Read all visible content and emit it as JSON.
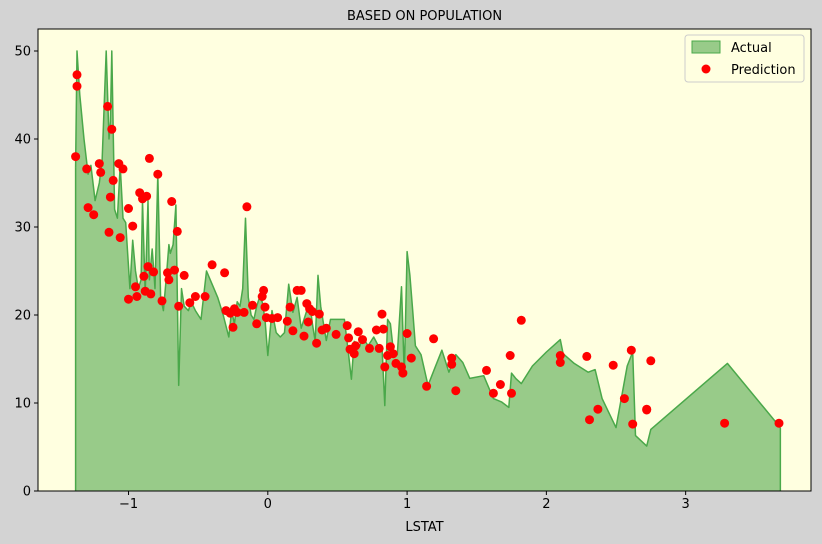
{
  "chart_data": {
    "type": "area",
    "title": "BASED ON POPULATION",
    "xlabel": "LSTAT",
    "ylabel": "",
    "xlim": [
      -1.65,
      3.9
    ],
    "ylim": [
      0,
      52.5
    ],
    "xticks": [
      -1,
      0,
      1,
      2,
      3
    ],
    "xtick_labels": [
      "−1",
      "0",
      "1",
      "2",
      "3"
    ],
    "yticks": [
      0,
      10,
      20,
      30,
      40,
      50
    ],
    "ytick_labels": [
      "0",
      "10",
      "20",
      "30",
      "40",
      "50"
    ],
    "grid": false,
    "legend_position": "top-right",
    "colors": {
      "figure_bg": "#d3d3d3",
      "axes_bg": "#ffffe0",
      "area_fill": "#98cb89",
      "area_line": "#4aa84a",
      "points": "#ff0000"
    },
    "series": [
      {
        "name": "Actual",
        "kind": "area",
        "x": [
          -1.38,
          -1.37,
          -1.35,
          -1.32,
          -1.29,
          -1.27,
          -1.24,
          -1.21,
          -1.19,
          -1.16,
          -1.14,
          -1.13,
          -1.12,
          -1.1,
          -1.08,
          -1.06,
          -1.04,
          -1.02,
          -0.99,
          -0.97,
          -0.95,
          -0.93,
          -0.91,
          -0.9,
          -0.88,
          -0.86,
          -0.85,
          -0.83,
          -0.81,
          -0.79,
          -0.77,
          -0.75,
          -0.73,
          -0.71,
          -0.7,
          -0.68,
          -0.66,
          -0.64,
          -0.62,
          -0.6,
          -0.57,
          -0.55,
          -0.52,
          -0.48,
          -0.44,
          -0.4,
          -0.36,
          -0.32,
          -0.28,
          -0.26,
          -0.24,
          -0.22,
          -0.2,
          -0.18,
          -0.16,
          -0.14,
          -0.12,
          -0.1,
          -0.08,
          -0.06,
          -0.04,
          -0.02,
          0,
          0.03,
          0.06,
          0.09,
          0.12,
          0.15,
          0.18,
          0.21,
          0.24,
          0.27,
          0.3,
          0.32,
          0.34,
          0.36,
          0.38,
          0.4,
          0.42,
          0.45,
          0.48,
          0.5,
          0.52,
          0.55,
          0.58,
          0.6,
          0.62,
          0.64,
          0.66,
          0.68,
          0.72,
          0.76,
          0.8,
          0.82,
          0.84,
          0.86,
          0.88,
          0.9,
          0.93,
          0.96,
          0.98,
          1.0,
          1.02,
          1.04,
          1.06,
          1.1,
          1.15,
          1.2,
          1.25,
          1.3,
          1.35,
          1.4,
          1.45,
          1.55,
          1.62,
          1.68,
          1.73,
          1.75,
          1.78,
          1.82,
          1.9,
          2.0,
          2.1,
          2.12,
          2.2,
          2.3,
          2.35,
          2.4,
          2.5,
          2.58,
          2.62,
          2.64,
          2.72,
          2.75,
          3.3,
          3.68
        ],
        "y": [
          36.8,
          50,
          45,
          40,
          36,
          37,
          33,
          35,
          37.5,
          50,
          40,
          42,
          50,
          32,
          31,
          37,
          31,
          30.5,
          23,
          28.5,
          25,
          23,
          24,
          33,
          22.5,
          33,
          24,
          27.5,
          23,
          36,
          22,
          20.5,
          24,
          28,
          27,
          28,
          32.5,
          12,
          23,
          21,
          20.5,
          21.5,
          20.5,
          19.5,
          25,
          23.5,
          22,
          20,
          17.5,
          20.5,
          19,
          21.5,
          21,
          23,
          31,
          22,
          20,
          19.5,
          21,
          22,
          21.5,
          19.5,
          15.4,
          20.5,
          18,
          17.5,
          18,
          23.5,
          20.3,
          22,
          18.5,
          20,
          21.5,
          19,
          17,
          24.5,
          21,
          19,
          17.1,
          19.5,
          19.5,
          19.5,
          19.5,
          19.5,
          15.5,
          12.7,
          17,
          16.8,
          16.4,
          17.5,
          16.5,
          17.5,
          16.3,
          16.4,
          9.7,
          19.5,
          19,
          16.1,
          15.5,
          23.2,
          13.2,
          27.2,
          24.5,
          20.5,
          16.5,
          15.5,
          12,
          14,
          16,
          13.5,
          15.5,
          14.6,
          12.8,
          13.1,
          10.5,
          10.1,
          9.5,
          13.4,
          12.8,
          12.2,
          14.2,
          15.8,
          17.2,
          15.6,
          14.5,
          13.5,
          13.8,
          10.5,
          7.2,
          14.2,
          15.8,
          6.3,
          5.1,
          7,
          14.5,
          7.2
        ]
      },
      {
        "name": "Prediction",
        "kind": "scatter",
        "x": [
          -1.38,
          -1.37,
          -1.37,
          -1.3,
          -1.29,
          -1.25,
          -1.21,
          -1.2,
          -1.15,
          -1.14,
          -1.13,
          -1.12,
          -1.11,
          -1.07,
          -1.06,
          -1.04,
          -1.0,
          -1.0,
          -0.97,
          -0.95,
          -0.94,
          -0.92,
          -0.9,
          -0.89,
          -0.88,
          -0.87,
          -0.86,
          -0.85,
          -0.84,
          -0.82,
          -0.79,
          -0.76,
          -0.72,
          -0.71,
          -0.69,
          -0.67,
          -0.65,
          -0.64,
          -0.6,
          -0.56,
          -0.52,
          -0.45,
          -0.4,
          -0.31,
          -0.3,
          -0.27,
          -0.25,
          -0.24,
          -0.22,
          -0.17,
          -0.15,
          -0.11,
          -0.08,
          -0.04,
          -0.03,
          -0.02,
          -0.01,
          0.03,
          0.07,
          0.14,
          0.16,
          0.18,
          0.21,
          0.24,
          0.26,
          0.28,
          0.29,
          0.3,
          0.32,
          0.35,
          0.37,
          0.39,
          0.42,
          0.49,
          0.57,
          0.58,
          0.59,
          0.62,
          0.63,
          0.65,
          0.68,
          0.73,
          0.78,
          0.8,
          0.82,
          0.83,
          0.84,
          0.86,
          0.88,
          0.9,
          0.92,
          0.96,
          0.97,
          1.0,
          1.03,
          1.14,
          1.19,
          1.32,
          1.32,
          1.35,
          1.57,
          1.62,
          1.67,
          1.74,
          1.75,
          1.82,
          2.1,
          2.1,
          2.29,
          2.31,
          2.37,
          2.48,
          2.56,
          2.61,
          2.62,
          2.72,
          2.72,
          2.75,
          3.28,
          3.67
        ],
        "y": [
          38,
          47.3,
          46,
          36.6,
          32.2,
          31.4,
          37.2,
          36.2,
          43.7,
          29.4,
          33.4,
          41.1,
          35.3,
          37.2,
          28.8,
          36.6,
          32.1,
          21.8,
          30.1,
          23.2,
          22.1,
          33.9,
          33.2,
          24.4,
          22.7,
          33.5,
          25.5,
          37.8,
          22.4,
          24.9,
          36,
          21.6,
          24.8,
          24,
          32.9,
          25.1,
          29.5,
          21,
          24.5,
          21.4,
          22.1,
          22.1,
          25.7,
          24.8,
          20.5,
          20.2,
          18.6,
          20.7,
          20.3,
          20.3,
          32.3,
          21.1,
          19,
          22.1,
          22.8,
          20.9,
          19.7,
          19.6,
          19.7,
          19.3,
          20.9,
          18.2,
          22.8,
          22.8,
          17.6,
          21.3,
          19.2,
          20.7,
          20.4,
          16.8,
          20.1,
          18.3,
          18.5,
          17.8,
          18.8,
          17.4,
          16.1,
          15.6,
          16.5,
          18.1,
          17.2,
          16.2,
          18.3,
          16.2,
          20.1,
          18.4,
          14.1,
          15.4,
          16.4,
          15.6,
          14.5,
          14.1,
          13.4,
          17.9,
          15.1,
          11.9,
          17.3,
          14.4,
          15.1,
          11.4,
          13.7,
          11.1,
          12.1,
          15.4,
          11.1,
          19.4,
          14.6,
          15.4,
          15.3,
          8.1,
          9.3,
          14.3,
          10.5,
          16,
          7.6,
          9.2,
          9.3,
          14.8,
          7.7,
          7.7
        ]
      }
    ]
  }
}
